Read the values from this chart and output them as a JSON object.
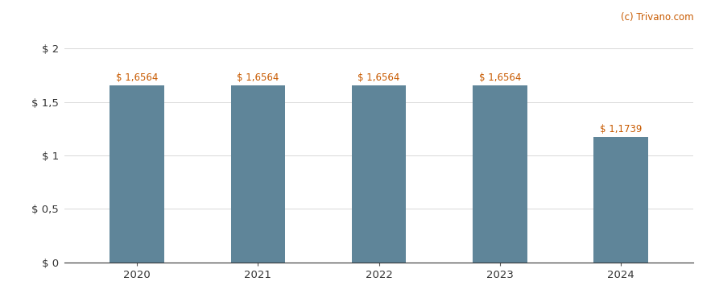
{
  "categories": [
    "2020",
    "2021",
    "2022",
    "2023",
    "2024"
  ],
  "values": [
    1.6564,
    1.6564,
    1.6564,
    1.6564,
    1.1739
  ],
  "bar_color": "#5f8599",
  "bar_labels": [
    "$ 1,6564",
    "$ 1,6564",
    "$ 1,6564",
    "$ 1,6564",
    "$ 1,1739"
  ],
  "bar_label_color": "#c85a00",
  "yticks": [
    0,
    0.5,
    1.0,
    1.5,
    2.0
  ],
  "ytick_labels": [
    "$ 0",
    "$ 0,5",
    "$ 1",
    "$ 1,5",
    "$ 2"
  ],
  "ylim": [
    0,
    2.12
  ],
  "background_color": "#ffffff",
  "watermark": "(c) Trivano.com",
  "watermark_color": "#c85a00",
  "bar_label_fontsize": 8.5,
  "axis_tick_fontsize": 9.5,
  "watermark_fontsize": 8.5,
  "bar_width": 0.45,
  "grid_color": "#d8d8d8",
  "bottom_line_color": "#333333"
}
